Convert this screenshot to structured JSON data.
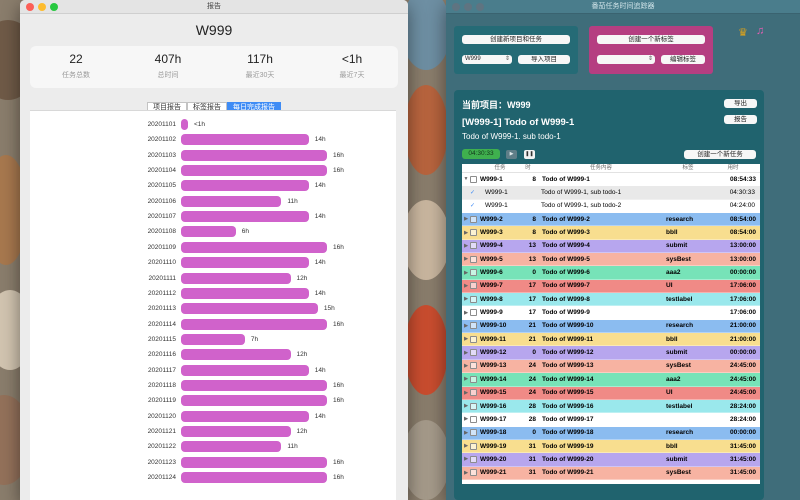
{
  "report": {
    "window_title": "报告",
    "project": "W999",
    "stats": [
      {
        "value": "22",
        "label": "任务总数"
      },
      {
        "value": "407h",
        "label": "总时间"
      },
      {
        "value": "117h",
        "label": "最近30天"
      },
      {
        "value": "<1h",
        "label": "最近7天"
      }
    ],
    "tabs": [
      "项目报告",
      "标签报告",
      "每日完成报告"
    ],
    "selected_tab": 2,
    "bars": [
      {
        "date": "20201101",
        "hours": 0.4,
        "label": "<1h"
      },
      {
        "date": "20201102",
        "hours": 14,
        "label": "14h"
      },
      {
        "date": "20201103",
        "hours": 16,
        "label": "16h"
      },
      {
        "date": "20201104",
        "hours": 16,
        "label": "16h"
      },
      {
        "date": "20201105",
        "hours": 14,
        "label": "14h"
      },
      {
        "date": "20201106",
        "hours": 11,
        "label": "11h"
      },
      {
        "date": "20201107",
        "hours": 14,
        "label": "14h"
      },
      {
        "date": "20201108",
        "hours": 6,
        "label": "6h"
      },
      {
        "date": "20201109",
        "hours": 16,
        "label": "16h"
      },
      {
        "date": "20201110",
        "hours": 14,
        "label": "14h"
      },
      {
        "date": "20201111",
        "hours": 12,
        "label": "12h"
      },
      {
        "date": "20201112",
        "hours": 14,
        "label": "14h"
      },
      {
        "date": "20201113",
        "hours": 15,
        "label": "15h"
      },
      {
        "date": "20201114",
        "hours": 16,
        "label": "16h"
      },
      {
        "date": "20201115",
        "hours": 7,
        "label": "7h"
      },
      {
        "date": "20201116",
        "hours": 12,
        "label": "12h"
      },
      {
        "date": "20201117",
        "hours": 14,
        "label": "14h"
      },
      {
        "date": "20201118",
        "hours": 16,
        "label": "16h"
      },
      {
        "date": "20201119",
        "hours": 16,
        "label": "16h"
      },
      {
        "date": "20201120",
        "hours": 14,
        "label": "14h"
      },
      {
        "date": "20201121",
        "hours": 12,
        "label": "12h"
      },
      {
        "date": "20201122",
        "hours": 11,
        "label": "11h"
      },
      {
        "date": "20201123",
        "hours": 16,
        "label": "16h"
      },
      {
        "date": "20201124",
        "hours": 16,
        "label": "16h"
      }
    ]
  },
  "tracker": {
    "window_title": "番茄任务时间追踪器",
    "new_project_task": "创建新项目和任务",
    "project_select": "W999",
    "import_project": "导入项目",
    "new_tag": "创建一个新标签",
    "tag_select": "",
    "edit_tag": "编辑标签",
    "current_project": "当前项目：W999",
    "export": "导出",
    "report": "报告",
    "task_title": "[W999-1] Todo of W999-1",
    "task_sub": "Todo of W999-1. sub todo-1",
    "timer": "04:30:33",
    "new_task": "创建一个新任务",
    "headers": [
      "任务",
      "时",
      "任务内容",
      "标签",
      "用时"
    ],
    "rows": [
      {
        "id": "W999-1",
        "h": "8",
        "name": "Todo of W999-1",
        "tag": "",
        "time": "08:54:33",
        "color": "#ffffff",
        "top": true,
        "expanded": true
      },
      {
        "id": "W999-1",
        "h": "",
        "name": "Todo of W999-1, sub todo-1",
        "tag": "",
        "time": "04:30:33",
        "color": "#e9e9e9",
        "sub": true
      },
      {
        "id": "W999-1",
        "h": "",
        "name": "Todo of W999-1, sub todo-2",
        "tag": "",
        "time": "04:24:00",
        "color": "#ffffff",
        "sub": true
      },
      {
        "id": "W999-2",
        "h": "8",
        "name": "Todo of W999-2",
        "tag": "research",
        "time": "08:54:00",
        "color": "#8bbcf0",
        "top": true
      },
      {
        "id": "W999-3",
        "h": "8",
        "name": "Todo of W999-3",
        "tag": "bbll",
        "time": "08:54:00",
        "color": "#f8de8f",
        "top": true
      },
      {
        "id": "W999-4",
        "h": "13",
        "name": "Todo of W999-4",
        "tag": "submit",
        "time": "13:00:00",
        "color": "#b7a6ee",
        "top": true
      },
      {
        "id": "W999-5",
        "h": "13",
        "name": "Todo of W999-5",
        "tag": "sysBest",
        "time": "13:00:00",
        "color": "#f7b3a2",
        "top": true
      },
      {
        "id": "W999-6",
        "h": "0",
        "name": "Todo of W999-6",
        "tag": "aaa2",
        "time": "00:00:00",
        "color": "#77e3b8",
        "top": true
      },
      {
        "id": "W999-7",
        "h": "17",
        "name": "Todo of W999-7",
        "tag": "UI",
        "time": "17:06:00",
        "color": "#f08a86",
        "top": true
      },
      {
        "id": "W999-8",
        "h": "17",
        "name": "Todo of W999-8",
        "tag": "testlabel",
        "time": "17:06:00",
        "color": "#9ae8ec",
        "top": true
      },
      {
        "id": "W999-9",
        "h": "17",
        "name": "Todo of W999-9",
        "tag": "",
        "time": "17:06:00",
        "color": "#ffffff",
        "top": true
      },
      {
        "id": "W999-10",
        "h": "21",
        "name": "Todo of W999-10",
        "tag": "research",
        "time": "21:00:00",
        "color": "#8bbcf0",
        "top": true
      },
      {
        "id": "W999-11",
        "h": "21",
        "name": "Todo of W999-11",
        "tag": "bbll",
        "time": "21:00:00",
        "color": "#f8de8f",
        "top": true
      },
      {
        "id": "W999-12",
        "h": "0",
        "name": "Todo of W999-12",
        "tag": "submit",
        "time": "00:00:00",
        "color": "#b7a6ee",
        "top": true
      },
      {
        "id": "W999-13",
        "h": "24",
        "name": "Todo of W999-13",
        "tag": "sysBest",
        "time": "24:45:00",
        "color": "#f7b3a2",
        "top": true
      },
      {
        "id": "W999-14",
        "h": "24",
        "name": "Todo of W999-14",
        "tag": "aaa2",
        "time": "24:45:00",
        "color": "#77e3b8",
        "top": true
      },
      {
        "id": "W999-15",
        "h": "24",
        "name": "Todo of W999-15",
        "tag": "UI",
        "time": "24:45:00",
        "color": "#f08a86",
        "top": true
      },
      {
        "id": "W999-16",
        "h": "28",
        "name": "Todo of W999-16",
        "tag": "testlabel",
        "time": "28:24:00",
        "color": "#9ae8ec",
        "top": true
      },
      {
        "id": "W999-17",
        "h": "28",
        "name": "Todo of W999-17",
        "tag": "",
        "time": "28:24:00",
        "color": "#ffffff",
        "top": true
      },
      {
        "id": "W999-18",
        "h": "0",
        "name": "Todo of W999-18",
        "tag": "research",
        "time": "00:00:00",
        "color": "#8bbcf0",
        "top": true
      },
      {
        "id": "W999-19",
        "h": "31",
        "name": "Todo of W999-19",
        "tag": "bbll",
        "time": "31:45:00",
        "color": "#f8de8f",
        "top": true
      },
      {
        "id": "W999-20",
        "h": "31",
        "name": "Todo of W999-20",
        "tag": "submit",
        "time": "31:45:00",
        "color": "#b7a6ee",
        "top": true
      },
      {
        "id": "W999-21",
        "h": "31",
        "name": "Todo of W999-21",
        "tag": "sysBest",
        "time": "31:45:00",
        "color": "#f7b3a2",
        "top": true
      }
    ]
  }
}
